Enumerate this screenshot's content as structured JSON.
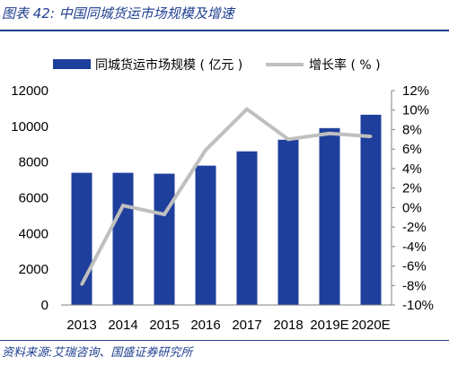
{
  "figure": {
    "title": "图表 42:  中国同城货运市场规模及增速",
    "source": "资料来源:艾瑞咨询、国盛证券研究所"
  },
  "colors": {
    "bar": "#1f3f9c",
    "line": "#bfbfbf",
    "rule": "#1f3f8f",
    "axis": "#808080"
  },
  "chart_data": {
    "type": "bar",
    "categories": [
      "2013",
      "2014",
      "2015",
      "2016",
      "2017",
      "2018",
      "2019E",
      "2020E"
    ],
    "series": [
      {
        "name": "同城货运市场规模 ( 亿元 )",
        "type": "bar",
        "axis": "left",
        "values": [
          7400,
          7400,
          7350,
          7800,
          8600,
          9250,
          9900,
          10650
        ]
      },
      {
        "name": "增长率 ( % )",
        "type": "line",
        "axis": "right",
        "values": [
          -7.9,
          0.2,
          -0.7,
          5.9,
          10.1,
          7.0,
          7.6,
          7.3
        ]
      }
    ],
    "y_left": {
      "min": 0,
      "max": 12000,
      "ticks": [
        "0",
        "2000",
        "4000",
        "6000",
        "8000",
        "10000",
        "12000"
      ]
    },
    "y_right": {
      "min": -10,
      "max": 12,
      "ticks": [
        "-10%",
        "-8%",
        "-6%",
        "-4%",
        "-2%",
        "0%",
        "2%",
        "4%",
        "6%",
        "8%",
        "10%",
        "12%"
      ]
    },
    "legend": "top",
    "grid": false
  }
}
